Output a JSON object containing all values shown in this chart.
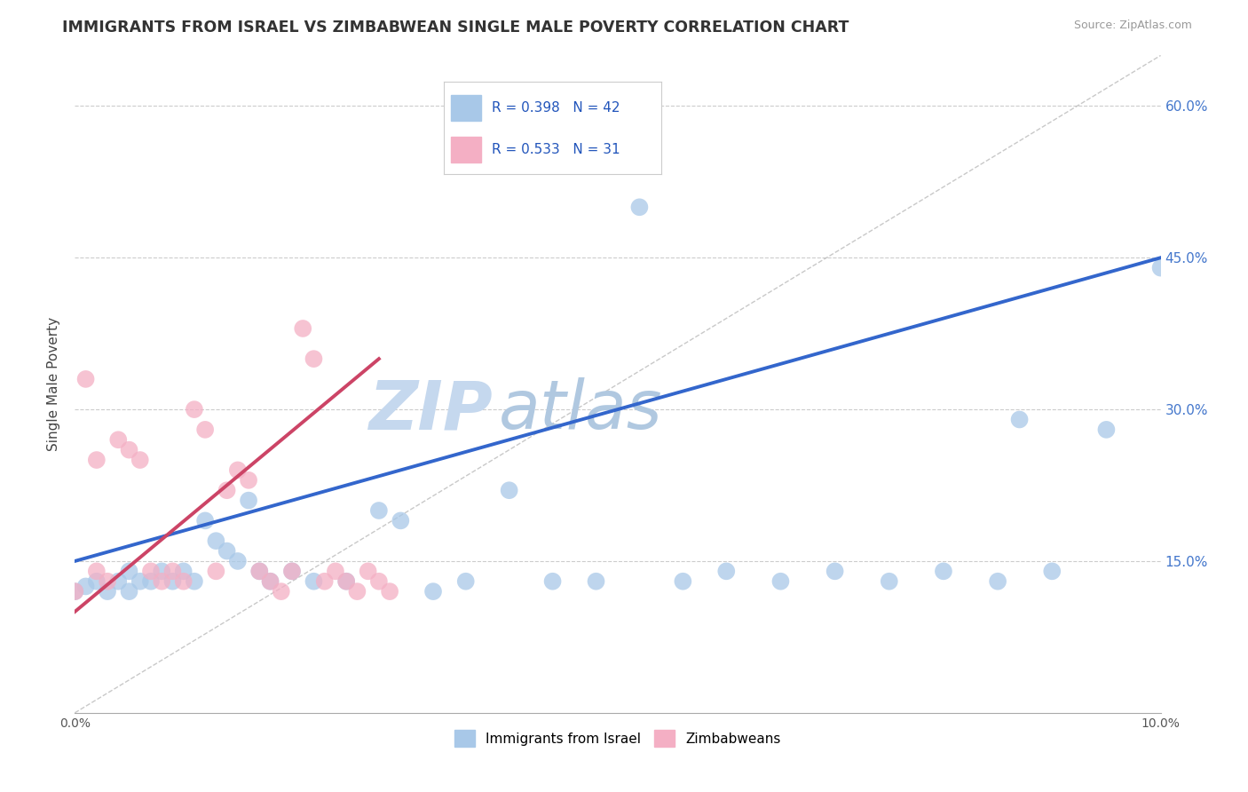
{
  "title": "IMMIGRANTS FROM ISRAEL VS ZIMBABWEAN SINGLE MALE POVERTY CORRELATION CHART",
  "source": "Source: ZipAtlas.com",
  "ylabel": "Single Male Poverty",
  "xlim": [
    0.0,
    0.1
  ],
  "ylim": [
    0.0,
    0.65
  ],
  "color_israel": "#a8c8e8",
  "color_zimbabwe": "#f4afc4",
  "line_color_israel": "#3366cc",
  "line_color_zimbabwe": "#cc4466",
  "diagonal_color": "#bbbbbb",
  "watermark_zip": "ZIP",
  "watermark_atlas": "atlas",
  "watermark_color": "#c5d8ee",
  "background_color": "#ffffff",
  "grid_color": "#cccccc",
  "legend_r1": "R = 0.398",
  "legend_n1": "N = 42",
  "legend_r2": "R = 0.533",
  "legend_n2": "N = 31",
  "israel_x": [
    0.0,
    0.001,
    0.002,
    0.003,
    0.004,
    0.005,
    0.005,
    0.006,
    0.007,
    0.008,
    0.009,
    0.01,
    0.011,
    0.012,
    0.013,
    0.014,
    0.015,
    0.016,
    0.017,
    0.018,
    0.02,
    0.022,
    0.025,
    0.028,
    0.03,
    0.033,
    0.036,
    0.04,
    0.044,
    0.048,
    0.052,
    0.056,
    0.06,
    0.065,
    0.07,
    0.075,
    0.08,
    0.085,
    0.09,
    0.095,
    0.1,
    0.087
  ],
  "israel_y": [
    0.12,
    0.125,
    0.13,
    0.12,
    0.13,
    0.12,
    0.14,
    0.13,
    0.13,
    0.14,
    0.13,
    0.14,
    0.13,
    0.19,
    0.17,
    0.16,
    0.15,
    0.21,
    0.14,
    0.13,
    0.14,
    0.13,
    0.13,
    0.2,
    0.19,
    0.12,
    0.13,
    0.22,
    0.13,
    0.13,
    0.5,
    0.13,
    0.14,
    0.13,
    0.14,
    0.13,
    0.14,
    0.13,
    0.14,
    0.28,
    0.44,
    0.29
  ],
  "zimbabwe_x": [
    0.0,
    0.001,
    0.002,
    0.002,
    0.003,
    0.004,
    0.005,
    0.006,
    0.007,
    0.008,
    0.009,
    0.01,
    0.011,
    0.012,
    0.013,
    0.014,
    0.015,
    0.016,
    0.017,
    0.018,
    0.019,
    0.02,
    0.021,
    0.022,
    0.023,
    0.024,
    0.025,
    0.026,
    0.027,
    0.028,
    0.029
  ],
  "zimbabwe_y": [
    0.12,
    0.33,
    0.25,
    0.14,
    0.13,
    0.27,
    0.26,
    0.25,
    0.14,
    0.13,
    0.14,
    0.13,
    0.3,
    0.28,
    0.14,
    0.22,
    0.24,
    0.23,
    0.14,
    0.13,
    0.12,
    0.14,
    0.38,
    0.35,
    0.13,
    0.14,
    0.13,
    0.12,
    0.14,
    0.13,
    0.12
  ],
  "israel_line_x": [
    0.0,
    0.1
  ],
  "israel_line_y": [
    0.15,
    0.45
  ],
  "zimbabwe_line_x": [
    0.0,
    0.028
  ],
  "zimbabwe_line_y": [
    0.1,
    0.35
  ]
}
